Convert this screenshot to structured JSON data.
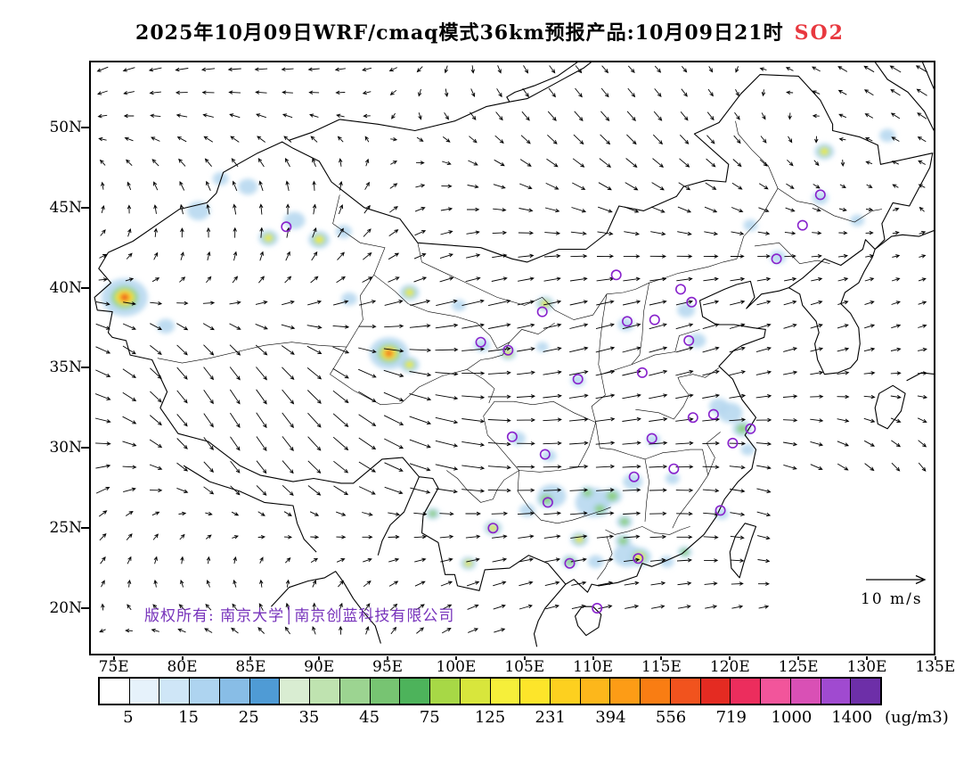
{
  "title": {
    "text": "2025年10月09日WRF/cmaq模式36km预报产品:10月09日21时",
    "species": "SO2",
    "species_color": "#e8383f"
  },
  "axes": {
    "lat_ticks": [
      "50N",
      "45N",
      "40N",
      "35N",
      "30N",
      "25N",
      "20N"
    ],
    "lon_ticks": [
      "75E",
      "80E",
      "85E",
      "90E",
      "95E",
      "100E",
      "105E",
      "110E",
      "115E",
      "120E",
      "125E",
      "130E",
      "135E"
    ]
  },
  "map": {
    "copyright": "版权所有: 南京大学│南京创蓝科技有限公司",
    "copyright_color": "#7733bb",
    "wind_ref_label": "10 m/s",
    "city_marker_color": "#8822cc",
    "city_markers": [
      [
        87.6,
        43.8
      ],
      [
        111.7,
        40.8
      ],
      [
        126.6,
        45.8
      ],
      [
        125.3,
        43.9
      ],
      [
        123.4,
        41.8
      ],
      [
        116.4,
        39.9
      ],
      [
        117.2,
        39.1
      ],
      [
        114.5,
        38.0
      ],
      [
        112.5,
        37.9
      ],
      [
        117.0,
        36.7
      ],
      [
        101.8,
        36.6
      ],
      [
        103.8,
        36.1
      ],
      [
        106.3,
        38.5
      ],
      [
        108.9,
        34.3
      ],
      [
        113.6,
        34.7
      ],
      [
        118.8,
        32.1
      ],
      [
        117.3,
        31.9
      ],
      [
        121.5,
        31.2
      ],
      [
        120.2,
        30.3
      ],
      [
        114.3,
        30.6
      ],
      [
        104.1,
        30.7
      ],
      [
        106.5,
        29.6
      ],
      [
        113.0,
        28.2
      ],
      [
        115.9,
        28.7
      ],
      [
        119.3,
        26.1
      ],
      [
        106.7,
        26.6
      ],
      [
        102.7,
        25.0
      ],
      [
        108.3,
        22.8
      ],
      [
        113.3,
        23.1
      ],
      [
        110.3,
        20.0
      ]
    ]
  },
  "colorbar": {
    "unit": "(ug/m3)",
    "tick_labels": [
      "5",
      "15",
      "25",
      "35",
      "45",
      "75",
      "125",
      "231",
      "394",
      "556",
      "719",
      "1000",
      "1400"
    ],
    "colors": [
      "#ffffff",
      "#e6f2fb",
      "#cfe6f7",
      "#aed4f0",
      "#88bde6",
      "#4f9bd5",
      "#d9edd2",
      "#bfe3b0",
      "#9cd491",
      "#77c472",
      "#4db35b",
      "#a7d846",
      "#d8e63c",
      "#f6ef3a",
      "#fde52a",
      "#fdd01f",
      "#fdb71b",
      "#fd9c16",
      "#f97d13",
      "#f1531e",
      "#e42b22",
      "#ec2d5d",
      "#f2559b",
      "#d950b5",
      "#a04ad0",
      "#6d2fa8"
    ]
  },
  "chart_data": {
    "type": "heatmap",
    "title": "2025年10月09日WRF/cmaq模式36km预报产品:10月09日21时 SO2",
    "model": "WRF/cmaq",
    "resolution": "36km",
    "species": "SO2",
    "unit": "ug/m3",
    "lon_range_deg_e": [
      75,
      135
    ],
    "lat_range_deg_n": [
      20,
      50
    ],
    "scale_levels": [
      5,
      15,
      25,
      35,
      45,
      75,
      125,
      231,
      394,
      556,
      719,
      1000,
      1400
    ],
    "wind_reference_mps": 10,
    "hotspots": [
      {
        "lon": 75.8,
        "lat": 39.4,
        "r": 26,
        "level": 4
      },
      {
        "lon": 78.8,
        "lat": 37.6,
        "r": 10,
        "level": 1
      },
      {
        "lon": 81.2,
        "lat": 44.8,
        "r": 13,
        "level": 1
      },
      {
        "lon": 82.8,
        "lat": 46.8,
        "r": 9,
        "level": 1
      },
      {
        "lon": 84.8,
        "lat": 46.3,
        "r": 11,
        "level": 1
      },
      {
        "lon": 86.3,
        "lat": 43.1,
        "r": 11,
        "level": 3
      },
      {
        "lon": 88.2,
        "lat": 44.2,
        "r": 12,
        "level": 1
      },
      {
        "lon": 90.0,
        "lat": 43.0,
        "r": 12,
        "level": 3
      },
      {
        "lon": 91.8,
        "lat": 43.5,
        "r": 9,
        "level": 1
      },
      {
        "lon": 92.2,
        "lat": 39.3,
        "r": 9,
        "level": 1
      },
      {
        "lon": 96.6,
        "lat": 39.7,
        "r": 11,
        "level": 3
      },
      {
        "lon": 95.1,
        "lat": 35.9,
        "r": 22,
        "level": 4
      },
      {
        "lon": 96.6,
        "lat": 35.2,
        "r": 11,
        "level": 3
      },
      {
        "lon": 100.2,
        "lat": 38.9,
        "r": 8,
        "level": 1
      },
      {
        "lon": 101.9,
        "lat": 36.4,
        "r": 9,
        "level": 1
      },
      {
        "lon": 103.8,
        "lat": 35.9,
        "r": 9,
        "level": 3
      },
      {
        "lon": 106.5,
        "lat": 39.0,
        "r": 10,
        "level": 3
      },
      {
        "lon": 106.3,
        "lat": 36.3,
        "r": 7,
        "level": 1
      },
      {
        "lon": 112.4,
        "lat": 37.7,
        "r": 9,
        "level": 1
      },
      {
        "lon": 116.8,
        "lat": 38.6,
        "r": 10,
        "level": 1
      },
      {
        "lon": 117.6,
        "lat": 36.7,
        "r": 10,
        "level": 1
      },
      {
        "lon": 126.9,
        "lat": 48.5,
        "r": 11,
        "level": 3
      },
      {
        "lon": 126.6,
        "lat": 45.6,
        "r": 9,
        "level": 1
      },
      {
        "lon": 123.5,
        "lat": 41.9,
        "r": 9,
        "level": 1
      },
      {
        "lon": 121.5,
        "lat": 43.9,
        "r": 8,
        "level": 1
      },
      {
        "lon": 129.3,
        "lat": 44.2,
        "r": 8,
        "level": 1
      },
      {
        "lon": 131.5,
        "lat": 49.5,
        "r": 9,
        "level": 1
      },
      {
        "lon": 108.9,
        "lat": 34.2,
        "r": 8,
        "level": 1
      },
      {
        "lon": 119.2,
        "lat": 32.6,
        "r": 11,
        "level": 1
      },
      {
        "lon": 120.0,
        "lat": 32.2,
        "r": 14,
        "level": 1
      },
      {
        "lon": 120.9,
        "lat": 31.2,
        "r": 11,
        "level": 2
      },
      {
        "lon": 121.3,
        "lat": 29.9,
        "r": 8,
        "level": 1
      },
      {
        "lon": 114.4,
        "lat": 30.5,
        "r": 8,
        "level": 1
      },
      {
        "lon": 104.5,
        "lat": 30.6,
        "r": 9,
        "level": 1
      },
      {
        "lon": 106.8,
        "lat": 29.5,
        "r": 8,
        "level": 1
      },
      {
        "lon": 115.8,
        "lat": 28.1,
        "r": 8,
        "level": 1
      },
      {
        "lon": 112.9,
        "lat": 27.9,
        "r": 11,
        "level": 1
      },
      {
        "lon": 111.4,
        "lat": 27.0,
        "r": 11,
        "level": 2
      },
      {
        "lon": 110.5,
        "lat": 26.2,
        "r": 10,
        "level": 2
      },
      {
        "lon": 110.0,
        "lat": 26.6,
        "r": 20,
        "level": 1
      },
      {
        "lon": 109.6,
        "lat": 27.2,
        "r": 9,
        "level": 2
      },
      {
        "lon": 106.6,
        "lat": 26.8,
        "r": 11,
        "level": 2
      },
      {
        "lon": 107.0,
        "lat": 27.0,
        "r": 16,
        "level": 1
      },
      {
        "lon": 105.2,
        "lat": 26.1,
        "r": 9,
        "level": 1
      },
      {
        "lon": 112.3,
        "lat": 25.4,
        "r": 9,
        "level": 2
      },
      {
        "lon": 109.0,
        "lat": 24.3,
        "r": 10,
        "level": 3
      },
      {
        "lon": 112.2,
        "lat": 24.2,
        "r": 9,
        "level": 2
      },
      {
        "lon": 112.5,
        "lat": 23.3,
        "r": 16,
        "level": 1
      },
      {
        "lon": 110.2,
        "lat": 22.9,
        "r": 9,
        "level": 1
      },
      {
        "lon": 108.3,
        "lat": 22.9,
        "r": 9,
        "level": 2
      },
      {
        "lon": 113.4,
        "lat": 23.2,
        "r": 13,
        "level": 3
      },
      {
        "lon": 115.4,
        "lat": 22.9,
        "r": 8,
        "level": 1
      },
      {
        "lon": 116.7,
        "lat": 23.5,
        "r": 8,
        "level": 2
      },
      {
        "lon": 119.4,
        "lat": 25.9,
        "r": 8,
        "level": 1
      },
      {
        "lon": 102.7,
        "lat": 25.0,
        "r": 10,
        "level": 3
      },
      {
        "lon": 100.9,
        "lat": 22.8,
        "r": 9,
        "level": 3
      },
      {
        "lon": 98.3,
        "lat": 25.9,
        "r": 8,
        "level": 2
      }
    ]
  }
}
